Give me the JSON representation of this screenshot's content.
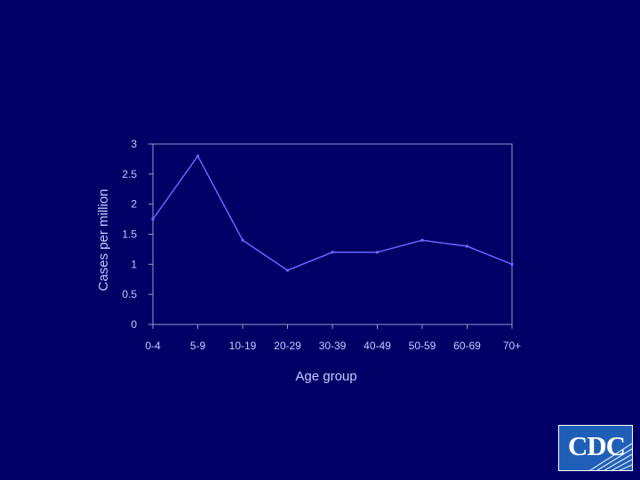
{
  "chart_data": {
    "type": "line",
    "title": "",
    "xlabel": "Age group",
    "ylabel": "Cases per million",
    "categories": [
      "0-4",
      "5-9",
      "10-19",
      "20-29",
      "30-39",
      "40-49",
      "50-59",
      "60-69",
      "70+"
    ],
    "series": [
      {
        "values": [
          1.75,
          2.8,
          1.4,
          0.9,
          1.2,
          1.2,
          1.4,
          1.3,
          1.0
        ]
      }
    ],
    "ylim": [
      0,
      3
    ],
    "yticks": [
      "0",
      "0.5",
      "1",
      "1.5",
      "2",
      "2.5",
      "3"
    ],
    "grid": false,
    "legend": "none",
    "colors": {
      "line": "#6666ff",
      "axis": "#9999cc",
      "text": "#c8c8ff",
      "background": "#000066"
    }
  },
  "logo": {
    "text": "CDC",
    "icon": "cdc-logo-icon"
  }
}
